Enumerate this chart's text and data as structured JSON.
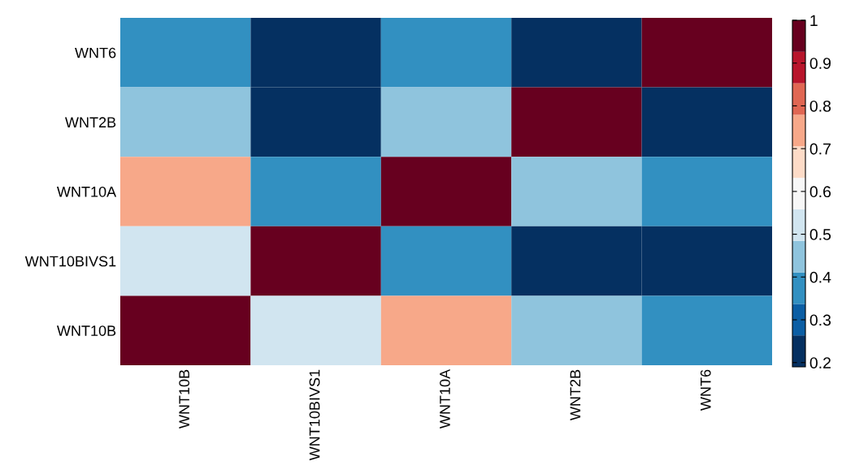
{
  "chart_data": {
    "type": "heatmap",
    "categories": [
      "WNT10B",
      "WNT10BIVS1",
      "WNT10A",
      "WNT2B",
      "WNT6"
    ],
    "y_categories": [
      "WNT6",
      "WNT2B",
      "WNT10A",
      "WNT10BIVS1",
      "WNT10B"
    ],
    "cells": [
      [
        0.36,
        0.2,
        0.36,
        0.2,
        1
      ],
      [
        0.44,
        0.2,
        0.44,
        1,
        0.2
      ],
      [
        0.73,
        0.36,
        1,
        0.44,
        0.36
      ],
      [
        0.5,
        1,
        0.36,
        0.2,
        0.2
      ],
      [
        1,
        0.5,
        0.73,
        0.44,
        0.36
      ]
    ],
    "colors": [
      "#053061",
      "#0b5ea4",
      "#3290c1",
      "#8fc4dd",
      "#d1e5f0",
      "#f7f7f7",
      "#fddbc7",
      "#f7a889",
      "#e06753",
      "#b8152b",
      "#67001f"
    ],
    "clim": [
      0.19,
      1
    ],
    "cticks": [
      0.2,
      0.3,
      0.4,
      0.5,
      0.6,
      0.7,
      0.8,
      0.9,
      1
    ],
    "grid": false
  }
}
